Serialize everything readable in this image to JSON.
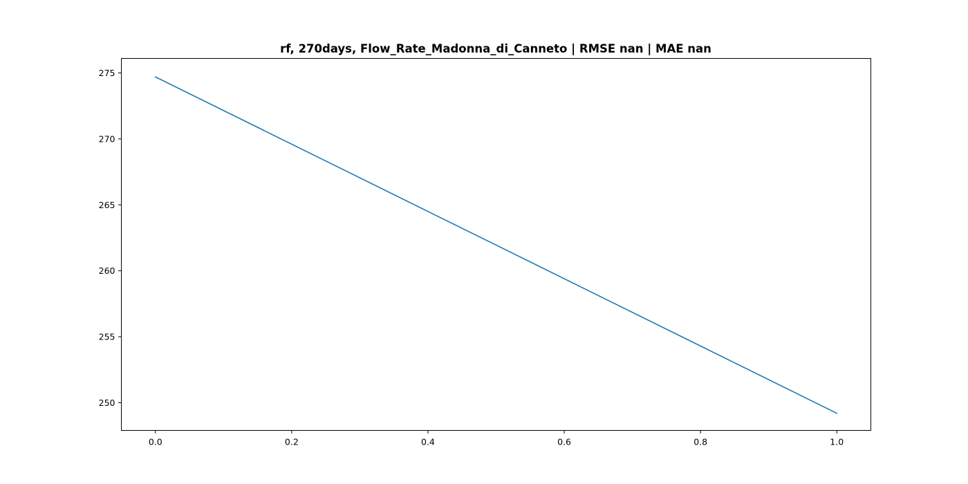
{
  "chart_data": {
    "type": "line",
    "title": "rf, 270days, Flow_Rate_Madonna_di_Canneto | RMSE nan | MAE nan",
    "xlabel": "",
    "ylabel": "",
    "xlim": [
      -0.05,
      1.05
    ],
    "ylim": [
      247.9,
      276.1
    ],
    "xticks": [
      0.0,
      0.2,
      0.4,
      0.6,
      0.8,
      1.0
    ],
    "xtick_labels": [
      "0.0",
      "0.2",
      "0.4",
      "0.6",
      "0.8",
      "1.0"
    ],
    "yticks": [
      250,
      255,
      260,
      265,
      270,
      275
    ],
    "ytick_labels": [
      "250",
      "255",
      "260",
      "265",
      "270",
      "275"
    ],
    "grid": false,
    "series": [
      {
        "color": "#1f77b4",
        "x": [
          0.0,
          1.0
        ],
        "y": [
          274.7,
          249.2
        ]
      }
    ]
  }
}
